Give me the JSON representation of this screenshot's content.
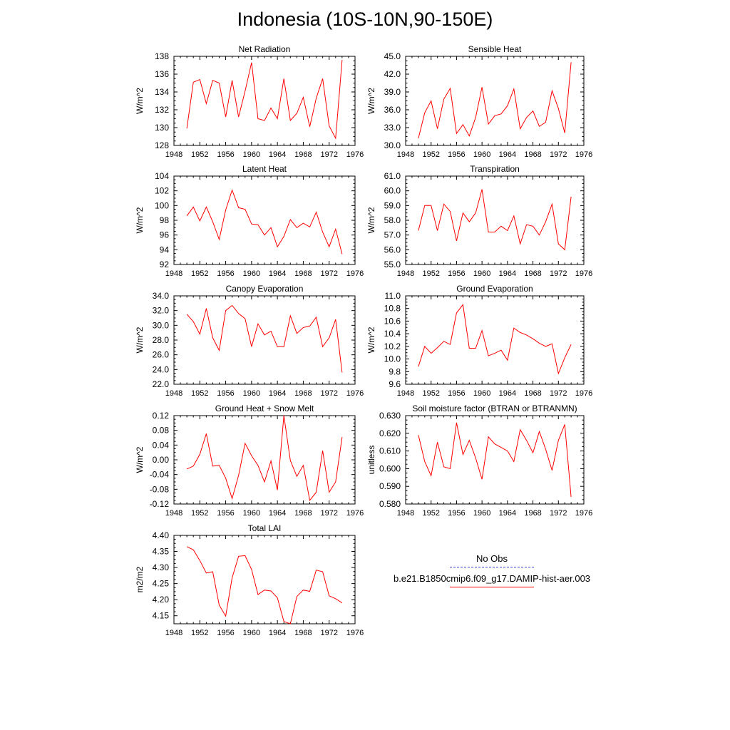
{
  "page": {
    "title": "Indonesia (10S-10N,90-150E)"
  },
  "legend": {
    "obs_label": "No Obs",
    "obs_color": "#3b3bd0",
    "model_label": "b.e21.B1850cmip6.f09_g17.DAMIP-hist-aer.003",
    "model_color": "#ff0000"
  },
  "chart_data": [
    {
      "type": "line",
      "title": "Net Radiation",
      "xlabel": "",
      "ylabel": "W/m^2",
      "xlim": [
        1948,
        1976
      ],
      "ylim": [
        128,
        138
      ],
      "xticks": [
        "1948",
        "1952",
        "1956",
        "1960",
        "1964",
        "1968",
        "1972",
        "1976"
      ],
      "yticks": [
        "128",
        "130",
        "132",
        "134",
        "136",
        "138"
      ],
      "series": [
        {
          "color": "#ff0000",
          "x": [
            1950,
            1951,
            1952,
            1953,
            1954,
            1955,
            1956,
            1957,
            1958,
            1959,
            1960,
            1961,
            1962,
            1963,
            1964,
            1965,
            1966,
            1967,
            1968,
            1969,
            1970,
            1971,
            1972,
            1973,
            1974
          ],
          "values": [
            129.9,
            135.1,
            135.4,
            132.7,
            135.3,
            135.0,
            131.2,
            135.3,
            131.2,
            134.1,
            137.3,
            131.0,
            130.8,
            132.2,
            131.0,
            135.5,
            130.8,
            131.6,
            133.4,
            130.1,
            133.3,
            135.5,
            130.2,
            128.8,
            137.6
          ]
        }
      ]
    },
    {
      "type": "line",
      "title": "Sensible Heat",
      "xlabel": "",
      "ylabel": "W/m^2",
      "xlim": [
        1948,
        1976
      ],
      "ylim": [
        30.0,
        45.0
      ],
      "xticks": [
        "1948",
        "1952",
        "1956",
        "1960",
        "1964",
        "1968",
        "1972",
        "1976"
      ],
      "yticks": [
        "30.0",
        "33.0",
        "36.0",
        "39.0",
        "42.0",
        "45.0"
      ],
      "series": [
        {
          "color": "#ff0000",
          "x": [
            1950,
            1951,
            1952,
            1953,
            1954,
            1955,
            1956,
            1957,
            1958,
            1959,
            1960,
            1961,
            1962,
            1963,
            1964,
            1965,
            1966,
            1967,
            1968,
            1969,
            1970,
            1971,
            1972,
            1973,
            1974
          ],
          "values": [
            31.2,
            35.5,
            37.5,
            32.8,
            37.8,
            39.6,
            32.0,
            33.5,
            31.6,
            34.7,
            39.8,
            33.6,
            35.0,
            35.3,
            36.7,
            39.5,
            32.8,
            34.7,
            35.8,
            33.2,
            33.9,
            39.2,
            36.2,
            32.1,
            44.0
          ]
        }
      ]
    },
    {
      "type": "line",
      "title": "Latent Heat",
      "xlabel": "",
      "ylabel": "W/m^2",
      "xlim": [
        1948,
        1976
      ],
      "ylim": [
        92,
        104
      ],
      "xticks": [
        "1948",
        "1952",
        "1956",
        "1960",
        "1964",
        "1968",
        "1972",
        "1976"
      ],
      "yticks": [
        "92",
        "94",
        "96",
        "98",
        "100",
        "102",
        "104"
      ],
      "series": [
        {
          "color": "#ff0000",
          "x": [
            1950,
            1951,
            1952,
            1953,
            1954,
            1955,
            1956,
            1957,
            1958,
            1959,
            1960,
            1961,
            1962,
            1963,
            1964,
            1965,
            1966,
            1967,
            1968,
            1969,
            1970,
            1971,
            1972,
            1973,
            1974
          ],
          "values": [
            98.6,
            99.8,
            97.9,
            99.8,
            97.8,
            95.4,
            99.4,
            102.1,
            99.7,
            99.5,
            97.5,
            97.4,
            96.0,
            97.0,
            94.4,
            95.8,
            98.1,
            97.0,
            97.6,
            97.1,
            99.1,
            96.4,
            94.4,
            96.8,
            93.4
          ]
        }
      ]
    },
    {
      "type": "line",
      "title": "Transpiration",
      "xlabel": "",
      "ylabel": "W/m^2",
      "xlim": [
        1948,
        1976
      ],
      "ylim": [
        55.0,
        61.0
      ],
      "xticks": [
        "1948",
        "1952",
        "1956",
        "1960",
        "1964",
        "1968",
        "1972",
        "1976"
      ],
      "yticks": [
        "55.0",
        "56.0",
        "57.0",
        "58.0",
        "59.0",
        "60.0",
        "61.0"
      ],
      "series": [
        {
          "color": "#ff0000",
          "x": [
            1950,
            1951,
            1952,
            1953,
            1954,
            1955,
            1956,
            1957,
            1958,
            1959,
            1960,
            1961,
            1962,
            1963,
            1964,
            1965,
            1966,
            1967,
            1968,
            1969,
            1970,
            1971,
            1972,
            1973,
            1974
          ],
          "values": [
            57.3,
            59.0,
            59.0,
            57.3,
            59.1,
            58.6,
            56.6,
            58.5,
            57.9,
            58.5,
            60.1,
            57.2,
            57.2,
            57.6,
            57.3,
            58.3,
            56.4,
            57.7,
            57.6,
            57.0,
            57.9,
            59.1,
            56.4,
            56.0,
            59.6
          ]
        }
      ]
    },
    {
      "type": "line",
      "title": "Canopy Evaporation",
      "xlabel": "",
      "ylabel": "W/m^2",
      "xlim": [
        1948,
        1976
      ],
      "ylim": [
        22.0,
        34.0
      ],
      "xticks": [
        "1948",
        "1952",
        "1956",
        "1960",
        "1964",
        "1968",
        "1972",
        "1976"
      ],
      "yticks": [
        "22.0",
        "24.0",
        "26.0",
        "28.0",
        "30.0",
        "32.0",
        "34.0"
      ],
      "series": [
        {
          "color": "#ff0000",
          "x": [
            1950,
            1951,
            1952,
            1953,
            1954,
            1955,
            1956,
            1957,
            1958,
            1959,
            1960,
            1961,
            1962,
            1963,
            1964,
            1965,
            1966,
            1967,
            1968,
            1969,
            1970,
            1971,
            1972,
            1973,
            1974
          ],
          "values": [
            31.5,
            30.5,
            28.8,
            32.3,
            28.3,
            26.6,
            32.0,
            32.7,
            31.6,
            30.9,
            27.1,
            30.2,
            28.7,
            29.2,
            27.1,
            27.1,
            31.3,
            28.9,
            29.7,
            29.9,
            31.1,
            27.1,
            28.3,
            30.8,
            23.6
          ]
        }
      ]
    },
    {
      "type": "line",
      "title": "Ground Evaporation",
      "xlabel": "",
      "ylabel": "W/m^2",
      "xlim": [
        1948,
        1976
      ],
      "ylim": [
        9.6,
        11.0
      ],
      "xticks": [
        "1948",
        "1952",
        "1956",
        "1960",
        "1964",
        "1968",
        "1972",
        "1976"
      ],
      "yticks": [
        "9.6",
        "9.8",
        "10.0",
        "10.2",
        "10.4",
        "10.6",
        "10.8",
        "11.0"
      ],
      "series": [
        {
          "color": "#ff0000",
          "x": [
            1950,
            1951,
            1952,
            1953,
            1954,
            1955,
            1956,
            1957,
            1958,
            1959,
            1960,
            1961,
            1962,
            1963,
            1964,
            1965,
            1966,
            1967,
            1968,
            1969,
            1970,
            1971,
            1972,
            1973,
            1974
          ],
          "values": [
            9.88,
            10.2,
            10.09,
            10.18,
            10.28,
            10.23,
            10.73,
            10.86,
            10.17,
            10.17,
            10.45,
            10.05,
            10.09,
            10.14,
            9.98,
            10.49,
            10.42,
            10.38,
            10.32,
            10.25,
            10.2,
            10.24,
            9.77,
            10.02,
            10.23
          ]
        }
      ]
    },
    {
      "type": "line",
      "title": "Ground Heat + Snow Melt",
      "xlabel": "",
      "ylabel": "W/m^2",
      "xlim": [
        1948,
        1976
      ],
      "ylim": [
        -0.12,
        0.12
      ],
      "xticks": [
        "1948",
        "1952",
        "1956",
        "1960",
        "1964",
        "1968",
        "1972",
        "1976"
      ],
      "yticks": [
        "-0.12",
        "-0.08",
        "-0.04",
        "0.00",
        "0.04",
        "0.08",
        "0.12"
      ],
      "series": [
        {
          "color": "#ff0000",
          "x": [
            1950,
            1951,
            1952,
            1953,
            1954,
            1955,
            1956,
            1957,
            1958,
            1959,
            1960,
            1961,
            1962,
            1963,
            1964,
            1965,
            1966,
            1967,
            1968,
            1969,
            1970,
            1971,
            1972,
            1973,
            1974
          ],
          "values": [
            -0.025,
            -0.017,
            0.015,
            0.071,
            -0.017,
            -0.015,
            -0.05,
            -0.105,
            -0.042,
            0.045,
            0.011,
            -0.015,
            -0.06,
            -0.003,
            -0.082,
            0.12,
            -0.002,
            -0.045,
            -0.015,
            -0.11,
            -0.088,
            0.025,
            -0.088,
            -0.06,
            0.062
          ]
        }
      ]
    },
    {
      "type": "line",
      "title": "Soil moisture factor (BTRAN or BTRANMN)",
      "xlabel": "",
      "ylabel": "unitless",
      "xlim": [
        1948,
        1976
      ],
      "ylim": [
        0.58,
        0.63
      ],
      "xticks": [
        "1948",
        "1952",
        "1956",
        "1960",
        "1964",
        "1968",
        "1972",
        "1976"
      ],
      "yticks": [
        "0.580",
        "0.590",
        "0.600",
        "0.610",
        "0.620",
        "0.630"
      ],
      "series": [
        {
          "color": "#ff0000",
          "x": [
            1950,
            1951,
            1952,
            1953,
            1954,
            1955,
            1956,
            1957,
            1958,
            1959,
            1960,
            1961,
            1962,
            1963,
            1964,
            1965,
            1966,
            1967,
            1968,
            1969,
            1970,
            1971,
            1972,
            1973,
            1974
          ],
          "values": [
            0.619,
            0.604,
            0.596,
            0.615,
            0.601,
            0.6,
            0.626,
            0.608,
            0.616,
            0.606,
            0.594,
            0.618,
            0.614,
            0.612,
            0.61,
            0.604,
            0.622,
            0.616,
            0.609,
            0.621,
            0.611,
            0.599,
            0.616,
            0.625,
            0.584
          ]
        }
      ]
    },
    {
      "type": "line",
      "title": "Total LAI",
      "xlabel": "",
      "ylabel": "m2/m2",
      "xlim": [
        1948,
        1976
      ],
      "ylim": [
        4.125,
        4.4
      ],
      "xticks": [
        "1948",
        "1952",
        "1956",
        "1960",
        "1964",
        "1968",
        "1972",
        "1976"
      ],
      "yticks": [
        "4.15",
        "4.20",
        "4.25",
        "4.30",
        "4.35",
        "4.40"
      ],
      "series": [
        {
          "color": "#ff0000",
          "x": [
            1950,
            1951,
            1952,
            1953,
            1954,
            1955,
            1956,
            1957,
            1958,
            1959,
            1960,
            1961,
            1962,
            1963,
            1964,
            1965,
            1966,
            1967,
            1968,
            1969,
            1970,
            1971,
            1972,
            1973,
            1974
          ],
          "values": [
            4.365,
            4.355,
            4.322,
            4.283,
            4.287,
            4.183,
            4.149,
            4.268,
            4.335,
            4.337,
            4.294,
            4.216,
            4.23,
            4.227,
            4.206,
            4.132,
            4.125,
            4.21,
            4.23,
            4.226,
            4.292,
            4.287,
            4.212,
            4.203,
            4.19
          ]
        }
      ]
    }
  ]
}
